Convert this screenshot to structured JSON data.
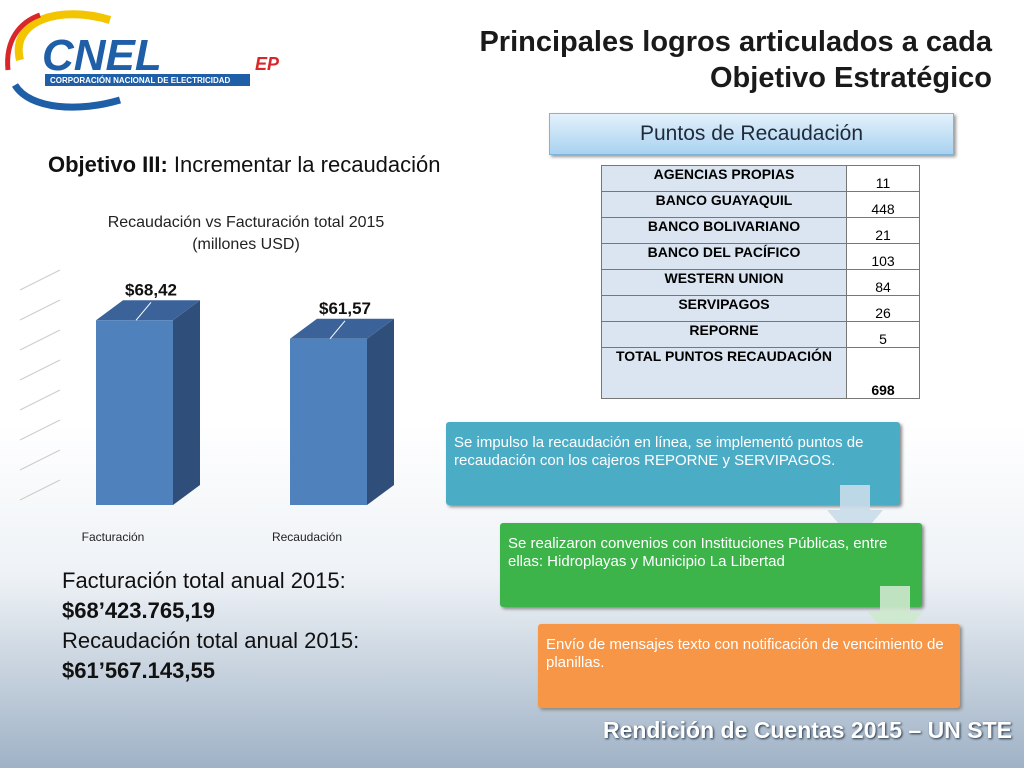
{
  "logo": {
    "name": "CNEL",
    "suffix": "EP",
    "tagline": "CORPORACIÓN NACIONAL DE ELECTRICIDAD"
  },
  "header": {
    "title": "Principales logros articulados a cada Objetivo Estratégico"
  },
  "objective": {
    "label": "Objetivo III:",
    "text": "Incrementar la recaudación"
  },
  "chart_data": {
    "type": "bar",
    "title": "Recaudación vs Facturación total 2015",
    "subtitle": "(millones USD)",
    "categories": [
      "Facturación",
      "Recaudación"
    ],
    "values": [
      68.42,
      61.57
    ],
    "value_labels": [
      "$68,42",
      "$61,57"
    ],
    "color": "#4f81bd",
    "ylim": [
      0,
      80
    ]
  },
  "summary": [
    "Facturación total anual 2015:",
    "$68’423.765,19",
    "Recaudación total anual 2015:",
    "$61’567.143,55"
  ],
  "table": {
    "title": "Puntos de Recaudación",
    "rows": [
      [
        "AGENCIAS PROPIAS",
        11
      ],
      [
        "BANCO GUAYAQUIL",
        448
      ],
      [
        "BANCO BOLIVARIANO",
        21
      ],
      [
        "BANCO DEL PACÍFICO",
        103
      ],
      [
        "WESTERN UNION",
        84
      ],
      [
        "SERVIPAGOS",
        26
      ],
      [
        "REPORNE",
        5
      ],
      [
        "TOTAL PUNTOS RECAUDACIÓN",
        698
      ]
    ]
  },
  "steps": [
    "Se impulso la recaudación en línea, se implementó puntos de recaudación con los cajeros REPORNE y SERVIPAGOS.",
    "Se realizaron convenios con Instituciones Públicas, entre ellas: Hidroplayas y Municipio La Libertad",
    "Envío de mensajes texto con notificación de vencimiento de planillas."
  ],
  "footer": "Rendición de Cuentas 2015 – UN STE"
}
